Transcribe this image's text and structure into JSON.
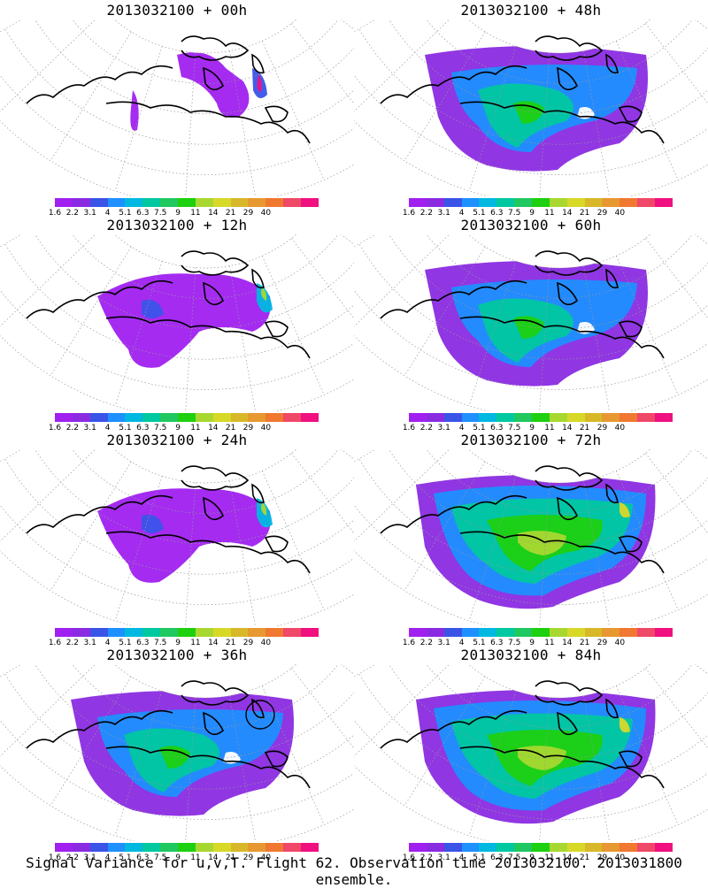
{
  "panels": [
    {
      "title": "2013032100 + 00h",
      "level": 0
    },
    {
      "title": "2013032100 + 48h",
      "level": 2
    },
    {
      "title": "2013032100 + 12h",
      "level": 1
    },
    {
      "title": "2013032100 + 60h",
      "level": 2
    },
    {
      "title": "2013032100 + 24h",
      "level": 1
    },
    {
      "title": "2013032100 + 72h",
      "level": 3
    },
    {
      "title": "2013032100 + 36h",
      "level": 2
    },
    {
      "title": "2013032100 + 84h",
      "level": 3
    }
  ],
  "colorbar": {
    "colors": [
      "#a020f0",
      "#8a2be2",
      "#3a54e8",
      "#1e90ff",
      "#00b8e0",
      "#00c8a0",
      "#20c860",
      "#1ed010",
      "#a8d830",
      "#d8d828",
      "#d8b828",
      "#e89830",
      "#f07830",
      "#f04868",
      "#f01080"
    ],
    "labels": [
      "1.6",
      "2.2",
      "3.1",
      "4",
      "5.1",
      "6.3",
      "7.5",
      "9",
      "11",
      "14",
      "21",
      "29",
      "40"
    ]
  },
  "caption": "Signal Variance for u,v,T. Flight 62. Observation time 2013032100. 2013031800 ensemble."
}
